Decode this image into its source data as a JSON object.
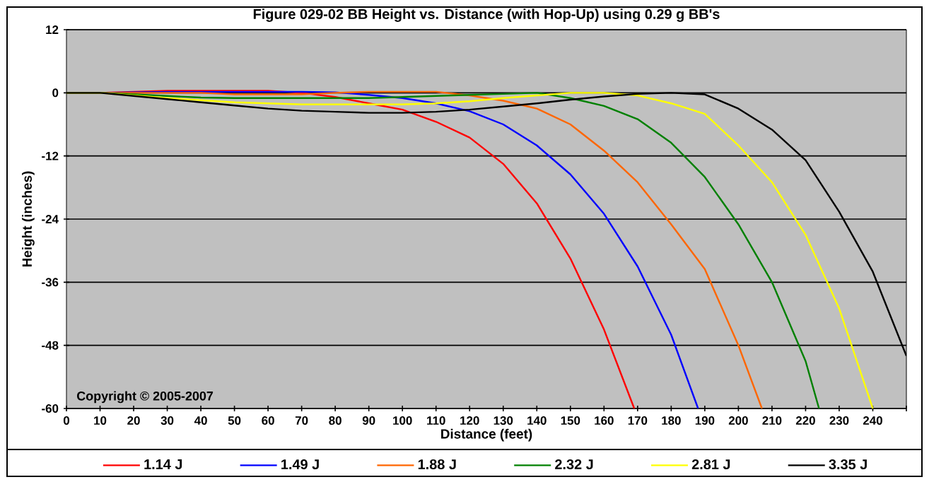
{
  "chart_data": {
    "type": "line",
    "title": "Figure 029-02  BB Height vs. Distance (with Hop-Up) using 0.29 g BB's",
    "xlabel": "Distance (feet)",
    "ylabel": "Height (inches)",
    "xlim": [
      0,
      250
    ],
    "ylim": [
      -60,
      12
    ],
    "xticks": [
      0,
      10,
      20,
      30,
      40,
      50,
      60,
      70,
      80,
      90,
      100,
      110,
      120,
      130,
      140,
      150,
      160,
      170,
      180,
      190,
      200,
      210,
      220,
      230,
      240,
      {
        "value": 250,
        "label": null
      }
    ],
    "yticks": [
      -60,
      -48,
      -36,
      -24,
      -12,
      0,
      12
    ],
    "grid": "y",
    "legend": "bottom",
    "line_style": "solid",
    "annotations": [
      "Copyright © 2005-2007"
    ],
    "series": [
      {
        "name": "1.14 J",
        "color": "#ff0000",
        "x": [
          0,
          10,
          20,
          30,
          40,
          50,
          60,
          70,
          80,
          90,
          100,
          110,
          120,
          130,
          140,
          150,
          160,
          169
        ],
        "values": [
          0,
          0,
          0.2,
          0.4,
          0.4,
          0.4,
          0.4,
          0,
          -0.8,
          -2,
          -3.2,
          -5.5,
          -8.5,
          -13.5,
          -21,
          -31.5,
          -45,
          -60
        ]
      },
      {
        "name": "1.49 J",
        "color": "#0000ff",
        "x": [
          0,
          10,
          20,
          30,
          40,
          50,
          60,
          70,
          80,
          90,
          100,
          110,
          120,
          130,
          140,
          150,
          160,
          170,
          180,
          188
        ],
        "values": [
          0,
          0,
          0.1,
          0.2,
          0.2,
          0.2,
          0.2,
          0.2,
          0.1,
          -0.4,
          -1,
          -2,
          -3.5,
          -6,
          -10,
          -15.5,
          -23,
          -33,
          -46,
          -60
        ]
      },
      {
        "name": "1.88 J",
        "color": "#ff6600",
        "x": [
          0,
          10,
          20,
          30,
          40,
          50,
          60,
          70,
          80,
          90,
          100,
          110,
          120,
          130,
          140,
          150,
          160,
          170,
          180,
          190,
          200,
          207
        ],
        "values": [
          0,
          0,
          0,
          0,
          0,
          -0.3,
          -0.3,
          -0.3,
          0,
          0.2,
          0.2,
          0.2,
          -0.5,
          -1.5,
          -3,
          -6,
          -11,
          -17,
          -25,
          -33.5,
          -48,
          -60
        ]
      },
      {
        "name": "2.32 J",
        "color": "#008000",
        "x": [
          0,
          10,
          20,
          30,
          40,
          50,
          60,
          70,
          80,
          90,
          100,
          110,
          120,
          130,
          140,
          150,
          160,
          170,
          180,
          190,
          200,
          210,
          220,
          224
        ],
        "values": [
          0,
          0,
          -0.3,
          -0.6,
          -0.9,
          -1,
          -1,
          -1,
          -1,
          -1,
          -0.8,
          -0.6,
          -0.4,
          -0.2,
          0,
          -1,
          -2.5,
          -5,
          -9.5,
          -16,
          -25,
          -36,
          -51,
          -60
        ]
      },
      {
        "name": "2.81 J",
        "color": "#ffff00",
        "x": [
          0,
          10,
          20,
          30,
          40,
          50,
          60,
          70,
          80,
          90,
          100,
          110,
          120,
          130,
          140,
          150,
          160,
          170,
          180,
          190,
          200,
          210,
          220,
          230,
          240
        ],
        "values": [
          0,
          0,
          -0.5,
          -1,
          -1.4,
          -1.8,
          -2,
          -2.2,
          -2.2,
          -2.2,
          -2.2,
          -2,
          -1.6,
          -1,
          -0.5,
          0,
          0,
          -0.5,
          -2,
          -4,
          -10,
          -17,
          -27,
          -41,
          -60
        ]
      },
      {
        "name": "3.35 J",
        "color": "#000000",
        "x": [
          0,
          10,
          20,
          30,
          40,
          50,
          60,
          70,
          80,
          90,
          100,
          110,
          120,
          130,
          140,
          150,
          160,
          170,
          180,
          190,
          200,
          210,
          220,
          230,
          240,
          250
        ],
        "values": [
          0,
          0,
          -0.6,
          -1.2,
          -1.8,
          -2.4,
          -3,
          -3.4,
          -3.6,
          -3.8,
          -3.8,
          -3.6,
          -3.2,
          -2.6,
          -2,
          -1.3,
          -0.7,
          -0.2,
          0,
          -0.3,
          -3,
          -7,
          -12.8,
          -22.6,
          -34,
          -50
        ]
      }
    ]
  }
}
